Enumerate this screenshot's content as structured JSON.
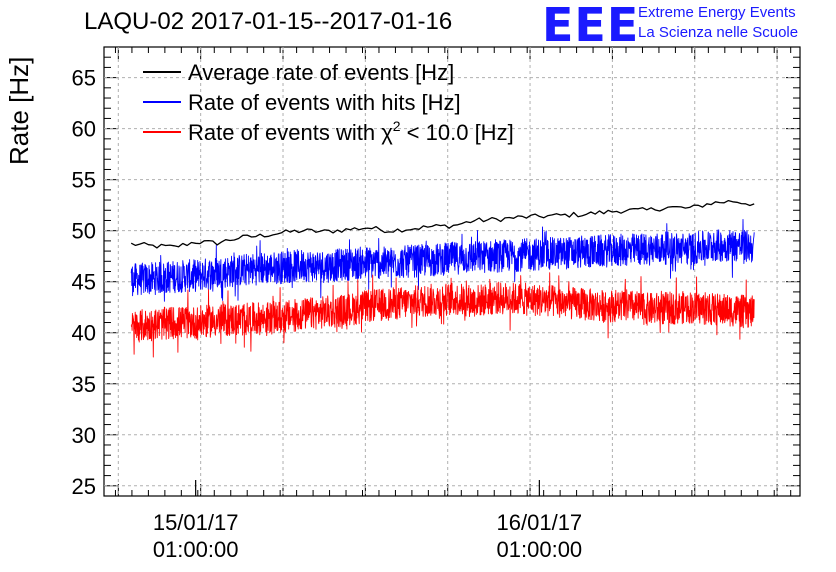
{
  "chart_data": {
    "type": "line",
    "title": "LAQU-02 2017-01-15--2017-01-16",
    "ylabel": "Rate [Hz]",
    "xlabel": "",
    "ylim": [
      24,
      68
    ],
    "yticks": [
      25,
      30,
      35,
      40,
      45,
      50,
      55,
      60,
      65
    ],
    "xticks": [
      {
        "date": "15/01/17",
        "time": "01:00:00",
        "hour": 1
      },
      {
        "date": "16/01/17",
        "time": "01:00:00",
        "hour": 25
      }
    ],
    "xlim_hours": [
      -5.4,
      43.2
    ],
    "grid": true,
    "legend_position": "top-left",
    "series": [
      {
        "name": "Average rate of events [Hz]",
        "color": "#000000",
        "hours": [
          -3.5,
          -2,
          -0.5,
          1,
          2.5,
          4,
          5.5,
          7,
          8.5,
          10,
          11.5,
          13,
          14.5,
          16,
          17.5,
          19,
          20.5,
          22,
          23.5,
          25,
          26.5,
          28,
          29.5,
          31,
          32.5,
          34,
          35.5,
          37,
          38.5,
          40
        ],
        "values": [
          48.7,
          48.5,
          48.4,
          48.9,
          48.8,
          49.3,
          49.5,
          49.8,
          50.0,
          49.9,
          50.1,
          50.3,
          50.0,
          50.2,
          50.4,
          50.5,
          51.0,
          51.1,
          51.3,
          51.4,
          51.5,
          51.6,
          51.8,
          52.0,
          52.0,
          52.3,
          52.2,
          52.7,
          52.9,
          52.6
        ]
      },
      {
        "name": "Rate of events with hits [Hz]",
        "color": "#0000ff",
        "hours": [
          -3.5,
          -2,
          -0.5,
          1,
          2.5,
          4,
          5.5,
          7,
          8.5,
          10,
          11.5,
          13,
          14.5,
          16,
          17.5,
          19,
          20.5,
          22,
          23.5,
          25,
          26.5,
          28,
          29.5,
          31,
          32.5,
          34,
          35.5,
          37,
          38.5,
          40
        ],
        "values": [
          45.2,
          45.3,
          45.5,
          45.6,
          45.9,
          46.1,
          46.3,
          46.4,
          46.6,
          46.5,
          46.7,
          46.9,
          46.8,
          47.0,
          47.1,
          47.3,
          47.4,
          47.5,
          47.6,
          47.7,
          47.8,
          47.9,
          48.0,
          48.1,
          48.2,
          48.3,
          48.2,
          48.5,
          48.6,
          48.4
        ]
      },
      {
        "name": "Rate of events with χ² < 10.0 [Hz]",
        "color": "#ff0000",
        "hours": [
          -3.5,
          -2,
          -0.5,
          1,
          2.5,
          4,
          5.5,
          7,
          8.5,
          10,
          11.5,
          13,
          14.5,
          16,
          17.5,
          19,
          20.5,
          22,
          23.5,
          25,
          26.5,
          28,
          29.5,
          31,
          32.5,
          34,
          35.5,
          37,
          38.5,
          40
        ],
        "values": [
          40.6,
          40.8,
          41.0,
          41.0,
          41.2,
          41.3,
          41.4,
          41.5,
          41.8,
          42.0,
          42.2,
          42.6,
          42.8,
          43.0,
          43.2,
          43.3,
          43.1,
          43.4,
          43.3,
          43.2,
          43.0,
          42.8,
          42.6,
          42.7,
          42.3,
          42.4,
          42.5,
          42.3,
          42.2,
          42.0
        ]
      }
    ],
    "legend": [
      {
        "prefix": "Average rate of events [Hz]",
        "suffix": "",
        "color": "#000000"
      },
      {
        "prefix": "Rate of events with hits [Hz]",
        "suffix": "",
        "color": "#0000ff"
      },
      {
        "prefix": "Rate of events with χ",
        "sup": "2",
        "suffix": " < 10.0 [Hz]",
        "color": "#ff0000"
      }
    ]
  },
  "logo": {
    "text": "EEE",
    "line1": "Extreme Energy Events",
    "line2": "La Scienza nelle Scuole",
    "color": "#1a1aff"
  }
}
